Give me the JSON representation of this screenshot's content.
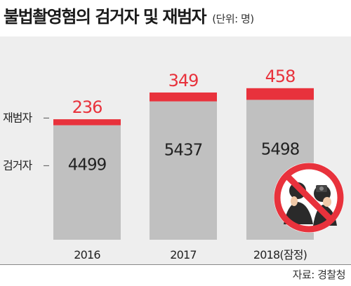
{
  "header": {
    "title": "불법촬영혐의 검거자 및 재범자",
    "unit": "(단위: 명)"
  },
  "footer": {
    "source": "자료: 경찰청"
  },
  "colors": {
    "caught": "#c0c0c0",
    "repeat": "#e8323c",
    "background": "#eeeeee",
    "repeat_text": "#e8323c"
  },
  "chart_data": {
    "type": "bar",
    "stacked": true,
    "categories": [
      "2016",
      "2017",
      "2018(잠정)"
    ],
    "series": [
      {
        "name": "검거자",
        "values": [
          4499,
          5437,
          5498
        ]
      },
      {
        "name": "재범자",
        "values": [
          236,
          349,
          458
        ]
      }
    ],
    "series_labels": [
      "검거자",
      "재범자"
    ],
    "title": "불법촬영혐의 검거자 및 재범자",
    "unit": "(단위: 명)",
    "grid": false,
    "legend": "left"
  },
  "icon": "no-camera-icon"
}
